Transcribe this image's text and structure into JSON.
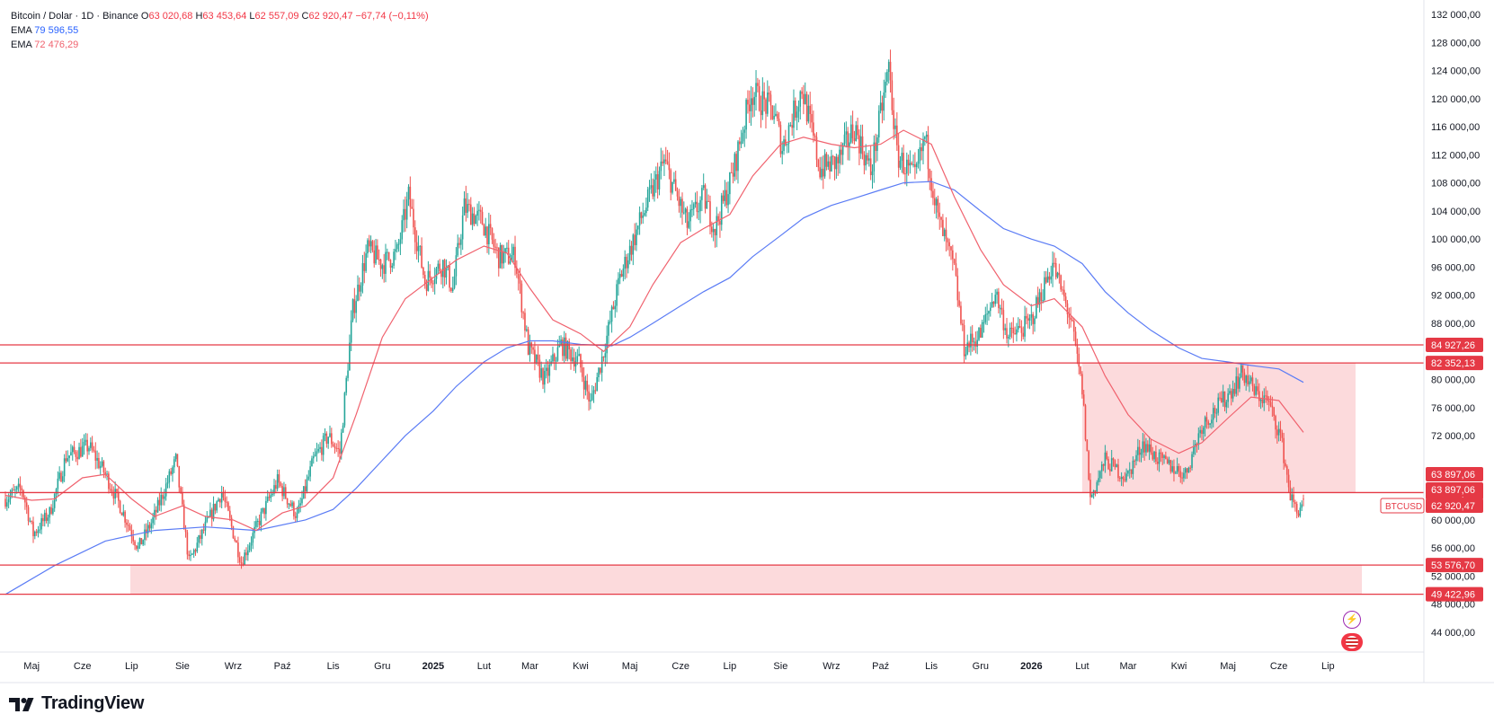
{
  "legend": {
    "symbol_line": "Bitcoin / Dolar · 1D · Binance",
    "o_label": "O",
    "o_value": "63 020,68",
    "h_label": "H",
    "h_value": "63 453,64",
    "l_label": "L",
    "l_value": "62 557,09",
    "c_label": "C",
    "c_value": "62 920,47",
    "change": "−67,74 (−0,11%)",
    "ema1_label": "EMA",
    "ema1_value": "79 596,55",
    "ema2_label": "EMA",
    "ema2_value": "72 476,29"
  },
  "branding": {
    "name": "TradingView"
  },
  "colors": {
    "up": "#26a69a",
    "down": "#ef5350",
    "ema_long": "#5b7cf5",
    "ema_short": "#f0626e",
    "level_line": "#e53945",
    "zone_fill": "#fbd3d6",
    "axis_text": "#131722"
  },
  "chart_data": {
    "type": "candlestick",
    "symbol": "BTCUSD",
    "interval": "1D",
    "exchange": "Binance",
    "ylim": [
      42000,
      133000
    ],
    "y_ticks": [
      {
        "value": 132000,
        "label": "132 000,00"
      },
      {
        "value": 128000,
        "label": "128 000,00"
      },
      {
        "value": 124000,
        "label": "124 000,00"
      },
      {
        "value": 120000,
        "label": "120 000,00"
      },
      {
        "value": 116000,
        "label": "116 000,00"
      },
      {
        "value": 112000,
        "label": "112 000,00"
      },
      {
        "value": 108000,
        "label": "108 000,00"
      },
      {
        "value": 104000,
        "label": "104 000,00"
      },
      {
        "value": 100000,
        "label": "100 000,00"
      },
      {
        "value": 96000,
        "label": "96 000,00"
      },
      {
        "value": 92000,
        "label": "92 000,00"
      },
      {
        "value": 88000,
        "label": "88 000,00"
      },
      {
        "value": 80000,
        "label": "80 000,00"
      },
      {
        "value": 76000,
        "label": "76 000,00"
      },
      {
        "value": 72000,
        "label": "72 000,00"
      },
      {
        "value": 60000,
        "label": "60 000,00"
      },
      {
        "value": 56000,
        "label": "56 000,00"
      },
      {
        "value": 52000,
        "label": "52 000,00"
      },
      {
        "value": 48000,
        "label": "48 000,00"
      },
      {
        "value": 44000,
        "label": "44 000,00"
      }
    ],
    "x_ticks": [
      {
        "date": "2024-05-01",
        "label": "Maj",
        "bold": false
      },
      {
        "date": "2024-06-01",
        "label": "Cze",
        "bold": false
      },
      {
        "date": "2024-07-01",
        "label": "Lip",
        "bold": false
      },
      {
        "date": "2024-08-01",
        "label": "Sie",
        "bold": false
      },
      {
        "date": "2024-09-01",
        "label": "Wrz",
        "bold": false
      },
      {
        "date": "2024-10-01",
        "label": "Paź",
        "bold": false
      },
      {
        "date": "2024-11-01",
        "label": "Lis",
        "bold": false
      },
      {
        "date": "2024-12-01",
        "label": "Gru",
        "bold": false
      },
      {
        "date": "2025-01-01",
        "label": "2025",
        "bold": true
      },
      {
        "date": "2025-02-01",
        "label": "Lut",
        "bold": false
      },
      {
        "date": "2025-03-01",
        "label": "Mar",
        "bold": false
      },
      {
        "date": "2025-04-01",
        "label": "Kwi",
        "bold": false
      },
      {
        "date": "2025-05-01",
        "label": "Maj",
        "bold": false
      },
      {
        "date": "2025-06-01",
        "label": "Cze",
        "bold": false
      },
      {
        "date": "2025-07-01",
        "label": "Lip",
        "bold": false
      },
      {
        "date": "2025-08-01",
        "label": "Sie",
        "bold": false
      },
      {
        "date": "2025-09-01",
        "label": "Wrz",
        "bold": false
      },
      {
        "date": "2025-10-01",
        "label": "Paź",
        "bold": false
      },
      {
        "date": "2025-11-01",
        "label": "Lis",
        "bold": false
      },
      {
        "date": "2025-12-01",
        "label": "Gru",
        "bold": false
      },
      {
        "date": "2026-01-01",
        "label": "2026",
        "bold": true
      },
      {
        "date": "2026-02-01",
        "label": "Lut",
        "bold": false
      },
      {
        "date": "2026-03-01",
        "label": "Mar",
        "bold": false
      },
      {
        "date": "2026-04-01",
        "label": "Kwi",
        "bold": false
      },
      {
        "date": "2026-05-01",
        "label": "Maj",
        "bold": false
      },
      {
        "date": "2026-06-01",
        "label": "Cze",
        "bold": false
      },
      {
        "date": "2026-07-01",
        "label": "Lip",
        "bold": false
      }
    ],
    "close_path": [
      [
        "2024-04-15",
        63000
      ],
      [
        "2024-04-25",
        64500
      ],
      [
        "2024-05-02",
        58000
      ],
      [
        "2024-05-12",
        61000
      ],
      [
        "2024-05-22",
        69000
      ],
      [
        "2024-06-05",
        70500
      ],
      [
        "2024-06-15",
        66500
      ],
      [
        "2024-06-25",
        61500
      ],
      [
        "2024-07-05",
        56000
      ],
      [
        "2024-07-14",
        60000
      ],
      [
        "2024-07-28",
        68500
      ],
      [
        "2024-08-05",
        54000
      ],
      [
        "2024-08-15",
        59000
      ],
      [
        "2024-08-25",
        64000
      ],
      [
        "2024-09-06",
        54000
      ],
      [
        "2024-09-18",
        60500
      ],
      [
        "2024-09-28",
        65500
      ],
      [
        "2024-10-10",
        60500
      ],
      [
        "2024-10-20",
        68500
      ],
      [
        "2024-10-29",
        72000
      ],
      [
        "2024-11-05",
        69500
      ],
      [
        "2024-11-13",
        90000
      ],
      [
        "2024-11-22",
        98500
      ],
      [
        "2024-12-01",
        96500
      ],
      [
        "2024-12-10",
        98000
      ],
      [
        "2024-12-17",
        106000
      ],
      [
        "2024-12-27",
        94000
      ],
      [
        "2025-01-07",
        96500
      ],
      [
        "2025-01-13",
        93000
      ],
      [
        "2025-01-20",
        104500
      ],
      [
        "2025-01-31",
        102500
      ],
      [
        "2025-02-10",
        97500
      ],
      [
        "2025-02-20",
        97500
      ],
      [
        "2025-02-28",
        84500
      ],
      [
        "2025-03-10",
        80000
      ],
      [
        "2025-03-20",
        85000
      ],
      [
        "2025-03-31",
        82500
      ],
      [
        "2025-04-07",
        76500
      ],
      [
        "2025-04-15",
        84000
      ],
      [
        "2025-04-25",
        94500
      ],
      [
        "2025-05-08",
        103000
      ],
      [
        "2025-05-22",
        111000
      ],
      [
        "2025-06-05",
        102000
      ],
      [
        "2025-06-15",
        106000
      ],
      [
        "2025-06-22",
        101500
      ],
      [
        "2025-07-03",
        109500
      ],
      [
        "2025-07-14",
        121000
      ],
      [
        "2025-07-28",
        118000
      ],
      [
        "2025-08-02",
        113000
      ],
      [
        "2025-08-14",
        121500
      ],
      [
        "2025-08-25",
        110000
      ],
      [
        "2025-09-05",
        111000
      ],
      [
        "2025-09-15",
        116000
      ],
      [
        "2025-09-25",
        109500
      ],
      [
        "2025-10-06",
        124500
      ],
      [
        "2025-10-11",
        112000
      ],
      [
        "2025-10-22",
        108500
      ],
      [
        "2025-10-28",
        114500
      ],
      [
        "2025-11-05",
        103000
      ],
      [
        "2025-11-15",
        95500
      ],
      [
        "2025-11-21",
        84500
      ],
      [
        "2025-12-01",
        86500
      ],
      [
        "2025-12-10",
        92500
      ],
      [
        "2025-12-18",
        86000
      ],
      [
        "2025-12-31",
        88000
      ],
      [
        "2026-01-14",
        96500
      ],
      [
        "2026-01-25",
        88500
      ],
      [
        "2026-02-01",
        78500
      ],
      [
        "2026-02-06",
        63000
      ],
      [
        "2026-02-15",
        68500
      ],
      [
        "2026-02-28",
        66000
      ],
      [
        "2026-03-10",
        71000
      ],
      [
        "2026-03-20",
        68500
      ],
      [
        "2026-04-05",
        66500
      ],
      [
        "2026-04-15",
        73500
      ],
      [
        "2026-04-30",
        77500
      ],
      [
        "2026-05-10",
        81000
      ],
      [
        "2026-05-18",
        78000
      ],
      [
        "2026-05-25",
        77000
      ],
      [
        "2026-06-02",
        72000
      ],
      [
        "2026-06-08",
        63500
      ],
      [
        "2026-06-12",
        61000
      ],
      [
        "2026-06-16",
        62920.47
      ]
    ],
    "series": [
      {
        "name": "EMA",
        "value_label": "79 596,55",
        "color": "#5b7cf5",
        "points": [
          [
            "2024-04-15",
            49400
          ],
          [
            "2024-05-15",
            53500
          ],
          [
            "2024-06-15",
            57000
          ],
          [
            "2024-07-15",
            58500
          ],
          [
            "2024-08-15",
            59000
          ],
          [
            "2024-09-15",
            58500
          ],
          [
            "2024-10-15",
            60000
          ],
          [
            "2024-11-01",
            61500
          ],
          [
            "2024-11-15",
            64500
          ],
          [
            "2024-12-01",
            68500
          ],
          [
            "2024-12-15",
            72000
          ],
          [
            "2025-01-01",
            75500
          ],
          [
            "2025-01-15",
            79000
          ],
          [
            "2025-02-01",
            82500
          ],
          [
            "2025-02-15",
            84500
          ],
          [
            "2025-03-01",
            85500
          ],
          [
            "2025-03-15",
            85500
          ],
          [
            "2025-04-01",
            85000
          ],
          [
            "2025-04-20",
            84800
          ],
          [
            "2025-05-01",
            86000
          ],
          [
            "2025-05-15",
            88000
          ],
          [
            "2025-06-01",
            90500
          ],
          [
            "2025-06-15",
            92500
          ],
          [
            "2025-07-01",
            94500
          ],
          [
            "2025-07-15",
            97500
          ],
          [
            "2025-08-01",
            100500
          ],
          [
            "2025-08-15",
            103000
          ],
          [
            "2025-09-01",
            104800
          ],
          [
            "2025-09-15",
            105800
          ],
          [
            "2025-10-01",
            107000
          ],
          [
            "2025-10-15",
            108000
          ],
          [
            "2025-11-01",
            108200
          ],
          [
            "2025-11-15",
            107000
          ],
          [
            "2025-12-01",
            104000
          ],
          [
            "2025-12-15",
            101500
          ],
          [
            "2026-01-01",
            100000
          ],
          [
            "2026-01-15",
            99000
          ],
          [
            "2026-02-01",
            96500
          ],
          [
            "2026-02-15",
            92500
          ],
          [
            "2026-03-01",
            89500
          ],
          [
            "2026-03-15",
            87000
          ],
          [
            "2026-04-01",
            84500
          ],
          [
            "2026-04-15",
            83000
          ],
          [
            "2026-05-01",
            82500
          ],
          [
            "2026-05-15",
            82000
          ],
          [
            "2026-06-01",
            81500
          ],
          [
            "2026-06-16",
            79596.55
          ]
        ]
      },
      {
        "name": "EMA",
        "value_label": "72 476,29",
        "color": "#f0626e",
        "points": [
          [
            "2024-04-15",
            63500
          ],
          [
            "2024-05-01",
            62800
          ],
          [
            "2024-05-15",
            63000
          ],
          [
            "2024-06-01",
            66000
          ],
          [
            "2024-06-15",
            66500
          ],
          [
            "2024-07-01",
            63000
          ],
          [
            "2024-07-15",
            60500
          ],
          [
            "2024-08-01",
            62000
          ],
          [
            "2024-08-15",
            60500
          ],
          [
            "2024-09-01",
            60000
          ],
          [
            "2024-09-15",
            58500
          ],
          [
            "2024-10-01",
            61000
          ],
          [
            "2024-10-15",
            62000
          ],
          [
            "2024-11-01",
            66000
          ],
          [
            "2024-11-15",
            75000
          ],
          [
            "2024-12-01",
            86000
          ],
          [
            "2024-12-15",
            91500
          ],
          [
            "2025-01-01",
            94500
          ],
          [
            "2025-01-15",
            97000
          ],
          [
            "2025-02-01",
            99000
          ],
          [
            "2025-02-15",
            98000
          ],
          [
            "2025-03-01",
            93000
          ],
          [
            "2025-03-15",
            88500
          ],
          [
            "2025-04-01",
            86500
          ],
          [
            "2025-04-15",
            84000
          ],
          [
            "2025-05-01",
            87500
          ],
          [
            "2025-05-15",
            93500
          ],
          [
            "2025-06-01",
            99500
          ],
          [
            "2025-06-15",
            101500
          ],
          [
            "2025-07-01",
            103500
          ],
          [
            "2025-07-15",
            109000
          ],
          [
            "2025-08-01",
            113500
          ],
          [
            "2025-08-15",
            114500
          ],
          [
            "2025-09-01",
            113500
          ],
          [
            "2025-09-15",
            113000
          ],
          [
            "2025-10-01",
            113500
          ],
          [
            "2025-10-15",
            115500
          ],
          [
            "2025-11-01",
            113500
          ],
          [
            "2025-11-15",
            106000
          ],
          [
            "2025-12-01",
            98500
          ],
          [
            "2025-12-15",
            93500
          ],
          [
            "2026-01-01",
            90500
          ],
          [
            "2026-01-15",
            91500
          ],
          [
            "2026-02-01",
            87500
          ],
          [
            "2026-02-15",
            80500
          ],
          [
            "2026-03-01",
            75000
          ],
          [
            "2026-03-15",
            71500
          ],
          [
            "2026-04-01",
            69500
          ],
          [
            "2026-04-15",
            71000
          ],
          [
            "2026-05-01",
            74500
          ],
          [
            "2026-05-15",
            77500
          ],
          [
            "2026-06-01",
            77000
          ],
          [
            "2026-06-16",
            72476.29
          ]
        ]
      }
    ],
    "horizontal_levels": [
      {
        "value": 84927.26,
        "label": "84 927,26"
      },
      {
        "value": 82352.13,
        "label": "82 352,13"
      },
      {
        "value": 63897.06,
        "label": "63 897,06"
      },
      {
        "value": 53576.7,
        "label": "53 576,70"
      },
      {
        "value": 49422.96,
        "label": "49 422,96"
      }
    ],
    "zones": [
      {
        "from_date": "2024-07-01",
        "to_date": "2026-06-30",
        "low": 49422.96,
        "high": 53576.7
      },
      {
        "from_date": "2026-02-01",
        "to_date": "2026-06-30",
        "low": 63897.06,
        "high": 82352.13
      }
    ],
    "price_tags": [
      {
        "value": 63897.06,
        "label": "63 897,06"
      },
      {
        "value": 63897.06,
        "label": "63 897,06"
      },
      {
        "value": 62920.47,
        "label": "62 920,47",
        "symbol": "BTCUSD"
      }
    ]
  }
}
